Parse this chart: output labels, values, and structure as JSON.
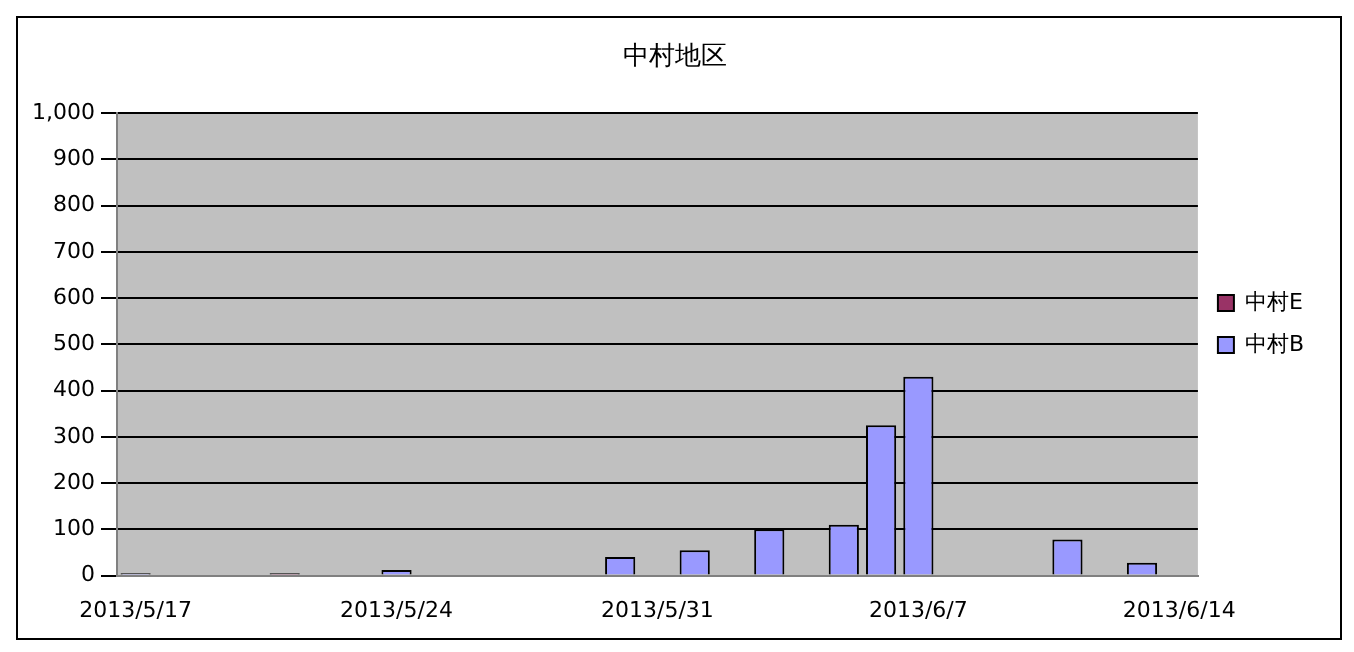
{
  "chart_data": {
    "type": "bar",
    "title": "中村地区",
    "categories": [
      "2013/5/17",
      null,
      null,
      null,
      null,
      null,
      null,
      "2013/5/24",
      null,
      null,
      null,
      null,
      null,
      null,
      "2013/5/31",
      null,
      null,
      null,
      null,
      null,
      null,
      "2013/6/7",
      null,
      null,
      null,
      null,
      null,
      null,
      "2013/6/14"
    ],
    "series": [
      {
        "name": "中村E",
        "color": "#993366",
        "values": [
          null,
          null,
          null,
          null,
          5,
          null,
          null,
          null,
          null,
          null,
          null,
          null,
          null,
          null,
          null,
          null,
          null,
          null,
          null,
          null,
          null,
          null,
          null,
          null,
          null,
          null,
          null,
          null,
          null
        ]
      },
      {
        "name": "中村B",
        "color": "#9999ff",
        "values": [
          5,
          null,
          null,
          null,
          null,
          null,
          null,
          12,
          null,
          null,
          null,
          null,
          null,
          40,
          null,
          55,
          null,
          100,
          null,
          110,
          325,
          430,
          null,
          null,
          null,
          78,
          null,
          28,
          null
        ]
      }
    ],
    "ylim": [
      0,
      1000
    ],
    "yticks": [
      0,
      100,
      200,
      300,
      400,
      500,
      600,
      700,
      800,
      900,
      {
        "value": 1000,
        "label": "1,000"
      }
    ],
    "grid": "y",
    "legend": "right"
  }
}
